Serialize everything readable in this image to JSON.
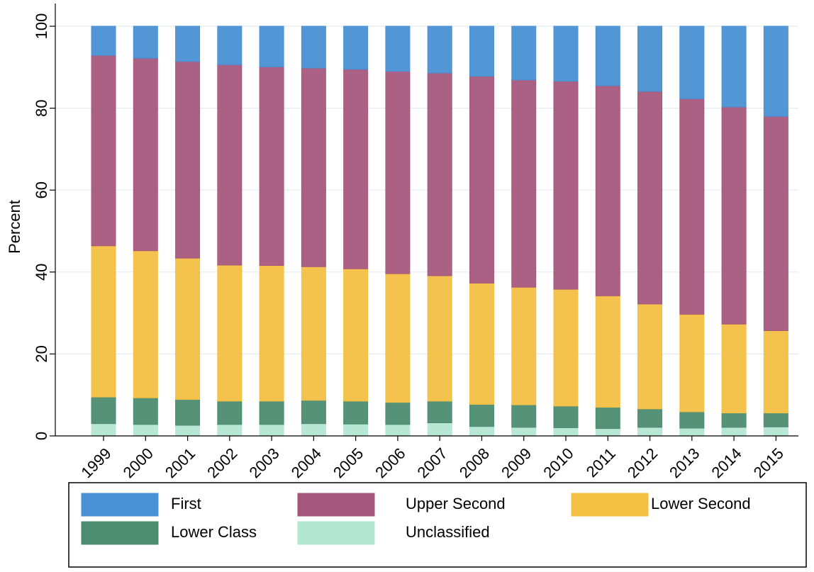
{
  "chart_data": {
    "type": "stacked_bar",
    "y_label": "Percent",
    "categories": [
      "1999",
      "2000",
      "2001",
      "2002",
      "2003",
      "2004",
      "2005",
      "2006",
      "2007",
      "2008",
      "2009",
      "2010",
      "2011",
      "2012",
      "2013",
      "2014",
      "2015"
    ],
    "series": [
      {
        "name": "First",
        "color": "#4a90d4",
        "values": [
          7.1,
          7.8,
          8.6,
          9.4,
          9.9,
          10.2,
          10.5,
          11.0,
          11.4,
          12.2,
          13.1,
          13.4,
          14.5,
          15.9,
          17.7,
          19.7,
          22.0
        ]
      },
      {
        "name": "Upper Second",
        "color": "#a5587c",
        "values": [
          46.5,
          47.0,
          48.0,
          48.9,
          48.5,
          48.5,
          48.7,
          49.4,
          49.5,
          50.5,
          50.6,
          50.8,
          51.3,
          51.9,
          52.6,
          53.0,
          52.3
        ]
      },
      {
        "name": "Lower Second",
        "color": "#f3c043",
        "values": [
          36.9,
          35.9,
          34.5,
          33.2,
          33.1,
          32.6,
          32.3,
          31.4,
          30.6,
          29.6,
          28.7,
          28.5,
          27.2,
          25.6,
          23.8,
          21.7,
          20.1
        ]
      },
      {
        "name": "Lower Class",
        "color": "#4c8c70",
        "values": [
          6.5,
          6.5,
          6.3,
          5.7,
          5.7,
          5.7,
          5.6,
          5.4,
          5.3,
          5.4,
          5.5,
          5.3,
          5.2,
          4.5,
          4.0,
          3.5,
          3.4
        ]
      },
      {
        "name": "Unclassified",
        "color": "#b4e6d4",
        "values": [
          3.0,
          2.8,
          2.6,
          2.8,
          2.8,
          3.0,
          2.9,
          2.8,
          3.2,
          2.3,
          2.1,
          2.0,
          1.8,
          2.1,
          1.9,
          2.1,
          2.2
        ]
      }
    ],
    "ylim": [
      0,
      100
    ],
    "yticks": [
      0,
      20,
      40,
      60,
      80,
      100
    ],
    "grid": true
  }
}
